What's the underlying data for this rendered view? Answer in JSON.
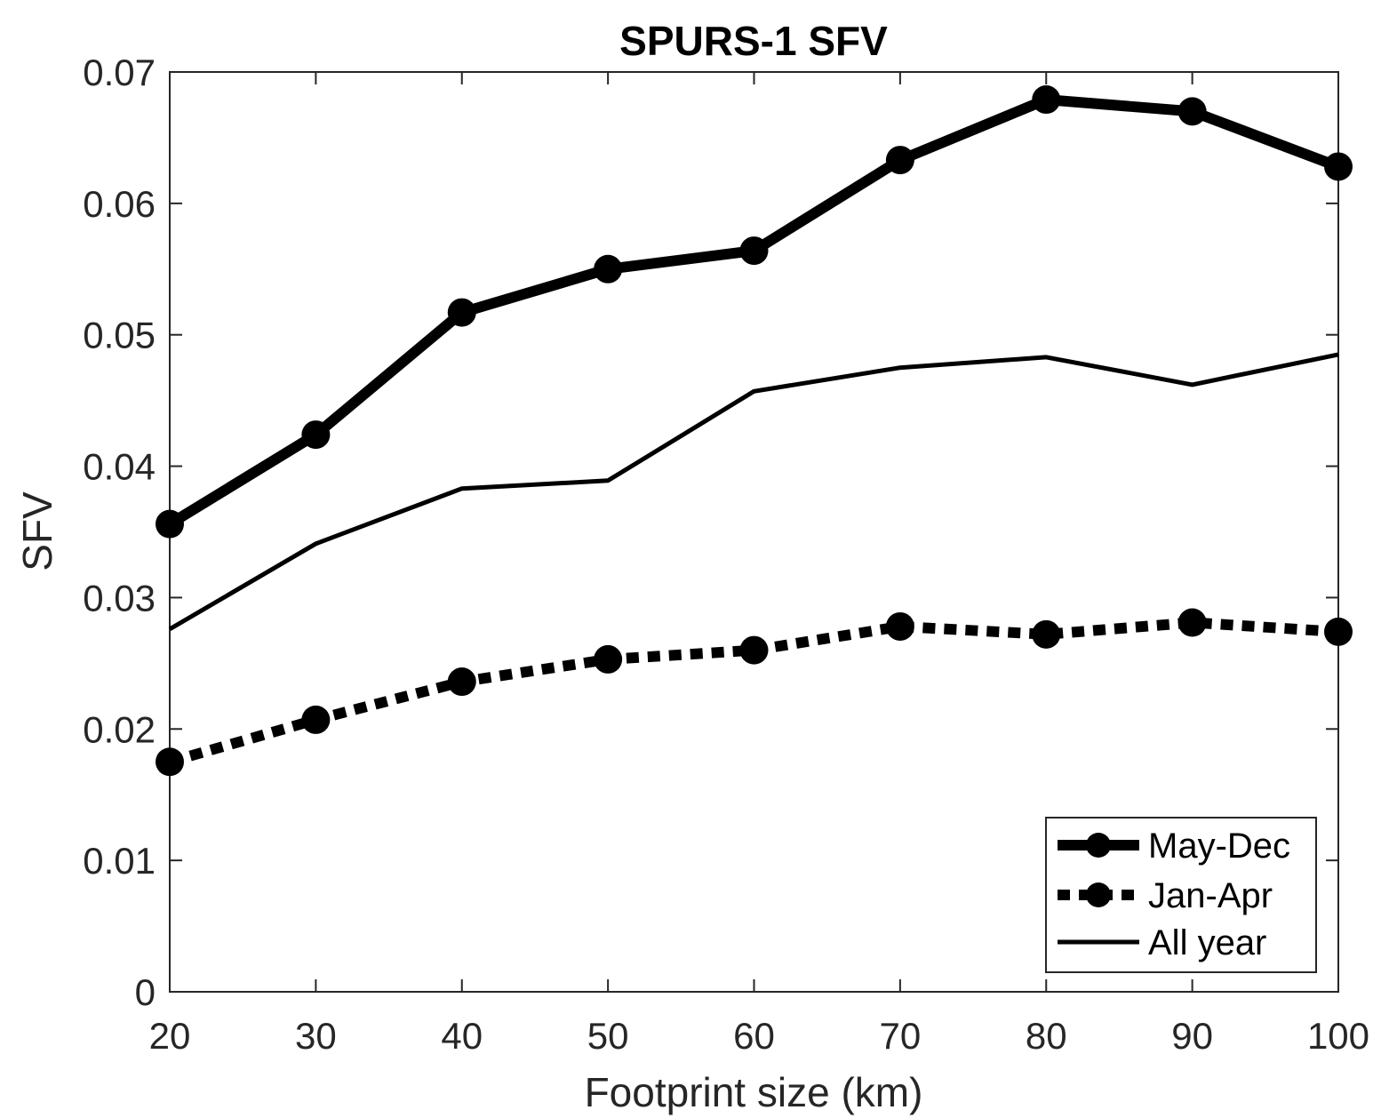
{
  "chart_data": {
    "type": "line",
    "title": "SPURS-1 SFV",
    "xlabel": "Footprint size (km)",
    "ylabel": "SFV",
    "xlim": [
      20,
      100
    ],
    "ylim": [
      0,
      0.07
    ],
    "xticks": [
      20,
      30,
      40,
      50,
      60,
      70,
      80,
      90,
      100
    ],
    "xtick_labels": [
      "20",
      "30",
      "40",
      "50",
      "60",
      "70",
      "80",
      "90",
      "100"
    ],
    "yticks": [
      0,
      0.01,
      0.02,
      0.03,
      0.04,
      0.05,
      0.06,
      0.07
    ],
    "ytick_labels": [
      "0",
      "0.01",
      "0.02",
      "0.03",
      "0.04",
      "0.05",
      "0.06",
      "0.07"
    ],
    "grid": false,
    "legend_position": "bottom-right",
    "x": [
      20,
      30,
      40,
      50,
      60,
      70,
      80,
      90,
      100
    ],
    "series": [
      {
        "name": "May-Dec",
        "values": [
          0.0356,
          0.0424,
          0.0517,
          0.055,
          0.0564,
          0.0633,
          0.0679,
          0.067,
          0.0628
        ],
        "style": "thick-solid",
        "marker": "circle",
        "color": "#000000"
      },
      {
        "name": "Jan-Apr",
        "values": [
          0.0175,
          0.0207,
          0.0236,
          0.0253,
          0.026,
          0.0278,
          0.0272,
          0.0281,
          0.0274
        ],
        "style": "thick-dotted",
        "marker": "circle",
        "color": "#000000"
      },
      {
        "name": "All year",
        "values": [
          0.0276,
          0.0341,
          0.0383,
          0.0389,
          0.0457,
          0.0475,
          0.0483,
          0.0462,
          0.0485
        ],
        "style": "solid",
        "marker": "none",
        "color": "#000000"
      }
    ]
  }
}
